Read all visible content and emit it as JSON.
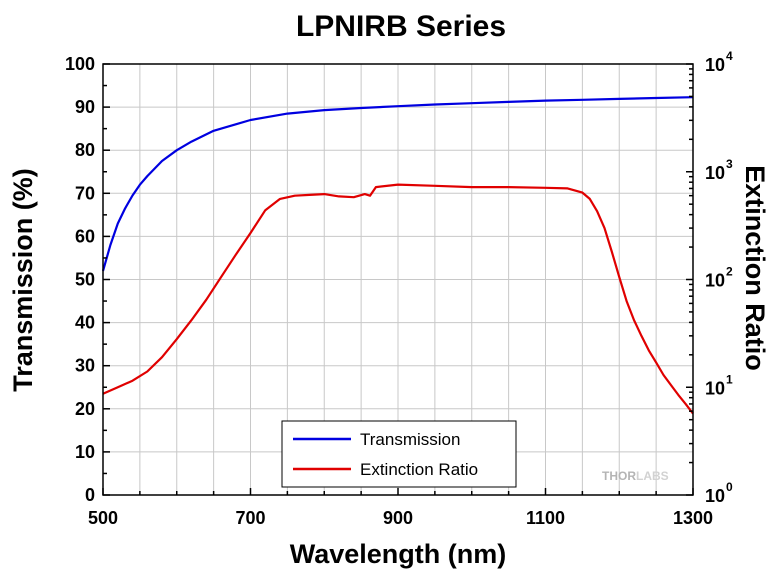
{
  "chart_data": {
    "type": "line",
    "title": "LPNIRB Series",
    "xlabel": "Wavelength (nm)",
    "ylabel": "Transmission (%)",
    "y2label": "Extinction Ratio",
    "xlim": [
      500,
      1300
    ],
    "ylim": [
      0,
      100
    ],
    "y2lim": [
      1,
      10000
    ],
    "y2scale": "log",
    "grid": true,
    "legend_position": "bottom-center",
    "x_ticks": [
      500,
      700,
      900,
      1100,
      1300
    ],
    "y_ticks": [
      0,
      10,
      20,
      30,
      40,
      50,
      60,
      70,
      80,
      90,
      100
    ],
    "y2_ticks": [
      {
        "value": 1,
        "base": "10",
        "exp": "0"
      },
      {
        "value": 10,
        "base": "10",
        "exp": "1"
      },
      {
        "value": 100,
        "base": "10",
        "exp": "2"
      },
      {
        "value": 1000,
        "base": "10",
        "exp": "3"
      },
      {
        "value": 10000,
        "base": "10",
        "exp": "4"
      }
    ],
    "series": [
      {
        "name": "Transmission",
        "axis": "left",
        "color": "#0000e0",
        "x": [
          500,
          510,
          520,
          530,
          540,
          550,
          560,
          580,
          600,
          620,
          650,
          680,
          700,
          750,
          800,
          850,
          900,
          950,
          1000,
          1050,
          1100,
          1150,
          1200,
          1250,
          1300
        ],
        "y": [
          52,
          58,
          63,
          66.5,
          69.5,
          72,
          74,
          77.5,
          80,
          82,
          84.5,
          86,
          87,
          88.5,
          89.3,
          89.8,
          90.2,
          90.6,
          90.9,
          91.2,
          91.5,
          91.7,
          91.9,
          92.1,
          92.3
        ]
      },
      {
        "name": "Extinction Ratio",
        "axis": "right",
        "color": "#e00000",
        "x": [
          500,
          520,
          540,
          560,
          580,
          600,
          620,
          640,
          660,
          680,
          700,
          720,
          740,
          760,
          780,
          800,
          820,
          840,
          855,
          862,
          870,
          900,
          950,
          1000,
          1050,
          1100,
          1130,
          1150,
          1160,
          1170,
          1180,
          1190,
          1200,
          1210,
          1220,
          1230,
          1240,
          1250,
          1260,
          1270,
          1280,
          1290,
          1300
        ],
        "y": [
          8.7,
          10,
          11.5,
          14,
          19,
          28,
          42,
          65,
          105,
          170,
          270,
          440,
          560,
          600,
          610,
          620,
          590,
          580,
          620,
          600,
          720,
          760,
          740,
          720,
          720,
          710,
          700,
          640,
          560,
          430,
          300,
          180,
          105,
          63,
          42,
          30,
          22,
          17,
          13,
          10.5,
          8.5,
          7,
          5.7
        ]
      }
    ]
  },
  "legend": {
    "items": [
      {
        "label": "Transmission",
        "color": "#0000e0"
      },
      {
        "label": "Extinction Ratio",
        "color": "#e00000"
      }
    ]
  },
  "watermark": {
    "part1": "THOR",
    "part2": "LABS"
  }
}
